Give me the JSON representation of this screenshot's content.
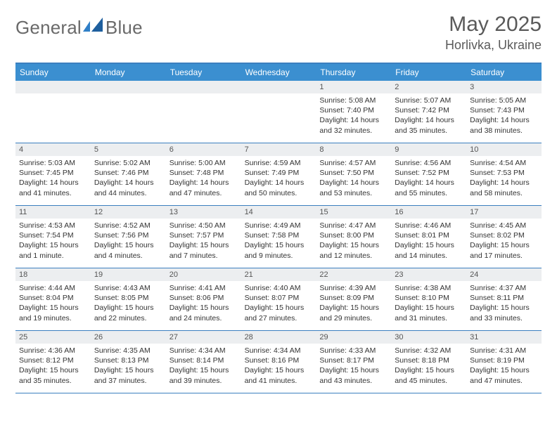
{
  "logo": {
    "word1": "General",
    "word2": "Blue",
    "accent": "#2f7fc7"
  },
  "title": "May 2025",
  "location": "Horlivka, Ukraine",
  "colors": {
    "header_bar": "#3b8fd0",
    "header_text": "#ffffff",
    "border": "#3b7fbf",
    "daynum_band": "#eceef0",
    "text": "#333333",
    "muted": "#5a5a5a"
  },
  "weekdays": [
    "Sunday",
    "Monday",
    "Tuesday",
    "Wednesday",
    "Thursday",
    "Friday",
    "Saturday"
  ],
  "weeks": [
    [
      {
        "n": "",
        "sr": "",
        "ss": "",
        "dl": ""
      },
      {
        "n": "",
        "sr": "",
        "ss": "",
        "dl": ""
      },
      {
        "n": "",
        "sr": "",
        "ss": "",
        "dl": ""
      },
      {
        "n": "",
        "sr": "",
        "ss": "",
        "dl": ""
      },
      {
        "n": "1",
        "sr": "Sunrise: 5:08 AM",
        "ss": "Sunset: 7:40 PM",
        "dl": "Daylight: 14 hours and 32 minutes."
      },
      {
        "n": "2",
        "sr": "Sunrise: 5:07 AM",
        "ss": "Sunset: 7:42 PM",
        "dl": "Daylight: 14 hours and 35 minutes."
      },
      {
        "n": "3",
        "sr": "Sunrise: 5:05 AM",
        "ss": "Sunset: 7:43 PM",
        "dl": "Daylight: 14 hours and 38 minutes."
      }
    ],
    [
      {
        "n": "4",
        "sr": "Sunrise: 5:03 AM",
        "ss": "Sunset: 7:45 PM",
        "dl": "Daylight: 14 hours and 41 minutes."
      },
      {
        "n": "5",
        "sr": "Sunrise: 5:02 AM",
        "ss": "Sunset: 7:46 PM",
        "dl": "Daylight: 14 hours and 44 minutes."
      },
      {
        "n": "6",
        "sr": "Sunrise: 5:00 AM",
        "ss": "Sunset: 7:48 PM",
        "dl": "Daylight: 14 hours and 47 minutes."
      },
      {
        "n": "7",
        "sr": "Sunrise: 4:59 AM",
        "ss": "Sunset: 7:49 PM",
        "dl": "Daylight: 14 hours and 50 minutes."
      },
      {
        "n": "8",
        "sr": "Sunrise: 4:57 AM",
        "ss": "Sunset: 7:50 PM",
        "dl": "Daylight: 14 hours and 53 minutes."
      },
      {
        "n": "9",
        "sr": "Sunrise: 4:56 AM",
        "ss": "Sunset: 7:52 PM",
        "dl": "Daylight: 14 hours and 55 minutes."
      },
      {
        "n": "10",
        "sr": "Sunrise: 4:54 AM",
        "ss": "Sunset: 7:53 PM",
        "dl": "Daylight: 14 hours and 58 minutes."
      }
    ],
    [
      {
        "n": "11",
        "sr": "Sunrise: 4:53 AM",
        "ss": "Sunset: 7:54 PM",
        "dl": "Daylight: 15 hours and 1 minute."
      },
      {
        "n": "12",
        "sr": "Sunrise: 4:52 AM",
        "ss": "Sunset: 7:56 PM",
        "dl": "Daylight: 15 hours and 4 minutes."
      },
      {
        "n": "13",
        "sr": "Sunrise: 4:50 AM",
        "ss": "Sunset: 7:57 PM",
        "dl": "Daylight: 15 hours and 7 minutes."
      },
      {
        "n": "14",
        "sr": "Sunrise: 4:49 AM",
        "ss": "Sunset: 7:58 PM",
        "dl": "Daylight: 15 hours and 9 minutes."
      },
      {
        "n": "15",
        "sr": "Sunrise: 4:47 AM",
        "ss": "Sunset: 8:00 PM",
        "dl": "Daylight: 15 hours and 12 minutes."
      },
      {
        "n": "16",
        "sr": "Sunrise: 4:46 AM",
        "ss": "Sunset: 8:01 PM",
        "dl": "Daylight: 15 hours and 14 minutes."
      },
      {
        "n": "17",
        "sr": "Sunrise: 4:45 AM",
        "ss": "Sunset: 8:02 PM",
        "dl": "Daylight: 15 hours and 17 minutes."
      }
    ],
    [
      {
        "n": "18",
        "sr": "Sunrise: 4:44 AM",
        "ss": "Sunset: 8:04 PM",
        "dl": "Daylight: 15 hours and 19 minutes."
      },
      {
        "n": "19",
        "sr": "Sunrise: 4:43 AM",
        "ss": "Sunset: 8:05 PM",
        "dl": "Daylight: 15 hours and 22 minutes."
      },
      {
        "n": "20",
        "sr": "Sunrise: 4:41 AM",
        "ss": "Sunset: 8:06 PM",
        "dl": "Daylight: 15 hours and 24 minutes."
      },
      {
        "n": "21",
        "sr": "Sunrise: 4:40 AM",
        "ss": "Sunset: 8:07 PM",
        "dl": "Daylight: 15 hours and 27 minutes."
      },
      {
        "n": "22",
        "sr": "Sunrise: 4:39 AM",
        "ss": "Sunset: 8:09 PM",
        "dl": "Daylight: 15 hours and 29 minutes."
      },
      {
        "n": "23",
        "sr": "Sunrise: 4:38 AM",
        "ss": "Sunset: 8:10 PM",
        "dl": "Daylight: 15 hours and 31 minutes."
      },
      {
        "n": "24",
        "sr": "Sunrise: 4:37 AM",
        "ss": "Sunset: 8:11 PM",
        "dl": "Daylight: 15 hours and 33 minutes."
      }
    ],
    [
      {
        "n": "25",
        "sr": "Sunrise: 4:36 AM",
        "ss": "Sunset: 8:12 PM",
        "dl": "Daylight: 15 hours and 35 minutes."
      },
      {
        "n": "26",
        "sr": "Sunrise: 4:35 AM",
        "ss": "Sunset: 8:13 PM",
        "dl": "Daylight: 15 hours and 37 minutes."
      },
      {
        "n": "27",
        "sr": "Sunrise: 4:34 AM",
        "ss": "Sunset: 8:14 PM",
        "dl": "Daylight: 15 hours and 39 minutes."
      },
      {
        "n": "28",
        "sr": "Sunrise: 4:34 AM",
        "ss": "Sunset: 8:16 PM",
        "dl": "Daylight: 15 hours and 41 minutes."
      },
      {
        "n": "29",
        "sr": "Sunrise: 4:33 AM",
        "ss": "Sunset: 8:17 PM",
        "dl": "Daylight: 15 hours and 43 minutes."
      },
      {
        "n": "30",
        "sr": "Sunrise: 4:32 AM",
        "ss": "Sunset: 8:18 PM",
        "dl": "Daylight: 15 hours and 45 minutes."
      },
      {
        "n": "31",
        "sr": "Sunrise: 4:31 AM",
        "ss": "Sunset: 8:19 PM",
        "dl": "Daylight: 15 hours and 47 minutes."
      }
    ]
  ]
}
